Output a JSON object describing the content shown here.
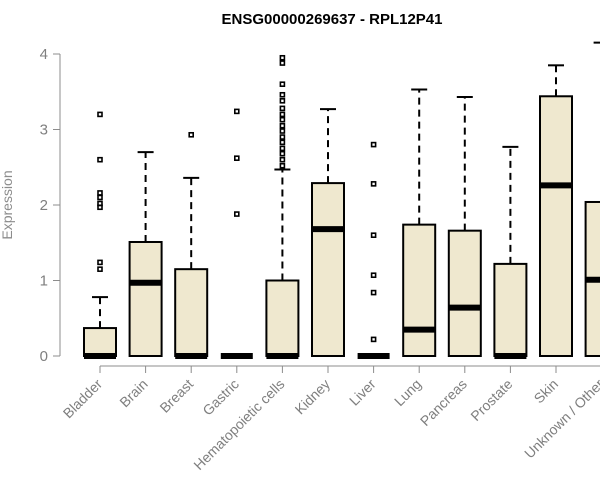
{
  "chart_data": {
    "type": "box",
    "title": "ENSG00000269637 - RPL12P41",
    "ylabel": "Expression",
    "xlabel": "",
    "ylim": [
      0,
      4.2
    ],
    "yticks": [
      "0",
      "1",
      "2",
      "3",
      "4"
    ],
    "box_fill": "#efe8cf",
    "grid": false,
    "categories": [
      "Bladder",
      "Brain",
      "Breast",
      "Gastric",
      "Hematopoietic cells",
      "Kidney",
      "Liver",
      "Lung",
      "Pancreas",
      "Prostate",
      "Skin",
      "Unknown / Other"
    ],
    "boxes": [
      {
        "q1": 0,
        "median": 0,
        "q3": 0.37,
        "whisker_low": 0,
        "whisker_high": 0.78,
        "outliers": [
          1.15,
          1.24,
          1.97,
          2.02,
          2.1,
          2.16,
          2.6,
          3.2
        ]
      },
      {
        "q1": 0,
        "median": 0.97,
        "q3": 1.51,
        "whisker_low": 0,
        "whisker_high": 2.7,
        "outliers": []
      },
      {
        "q1": 0,
        "median": 0,
        "q3": 1.15,
        "whisker_low": 0,
        "whisker_high": 2.36,
        "outliers": [
          2.93
        ]
      },
      {
        "q1": 0,
        "median": 0,
        "q3": 0,
        "whisker_low": 0,
        "whisker_high": 0,
        "outliers": [
          1.88,
          2.62,
          3.24
        ]
      },
      {
        "q1": 0,
        "median": 0,
        "q3": 1.0,
        "whisker_low": 0,
        "whisker_high": 2.47,
        "outliers": [
          2.52,
          2.6,
          2.68,
          2.75,
          2.83,
          2.9,
          2.98,
          3.05,
          3.13,
          3.2,
          3.28,
          3.38,
          3.46,
          3.6,
          3.88,
          3.95
        ]
      },
      {
        "q1": 0,
        "median": 1.68,
        "q3": 2.29,
        "whisker_low": 0,
        "whisker_high": 3.27,
        "outliers": []
      },
      {
        "q1": 0,
        "median": 0,
        "q3": 0,
        "whisker_low": 0,
        "whisker_high": 0,
        "outliers": [
          0.22,
          0.84,
          1.07,
          1.6,
          2.28,
          2.8
        ]
      },
      {
        "q1": 0,
        "median": 0.35,
        "q3": 1.74,
        "whisker_low": 0,
        "whisker_high": 3.53,
        "outliers": []
      },
      {
        "q1": 0,
        "median": 0.64,
        "q3": 1.66,
        "whisker_low": 0,
        "whisker_high": 3.43,
        "outliers": []
      },
      {
        "q1": 0,
        "median": 0,
        "q3": 1.22,
        "whisker_low": 0,
        "whisker_high": 2.77,
        "outliers": []
      },
      {
        "q1": 0,
        "median": 2.26,
        "q3": 3.44,
        "whisker_low": 0,
        "whisker_high": 3.85,
        "outliers": []
      },
      {
        "q1": 0,
        "median": 1.01,
        "q3": 2.04,
        "whisker_low": 0,
        "whisker_high": 4.15,
        "outliers": []
      }
    ]
  }
}
